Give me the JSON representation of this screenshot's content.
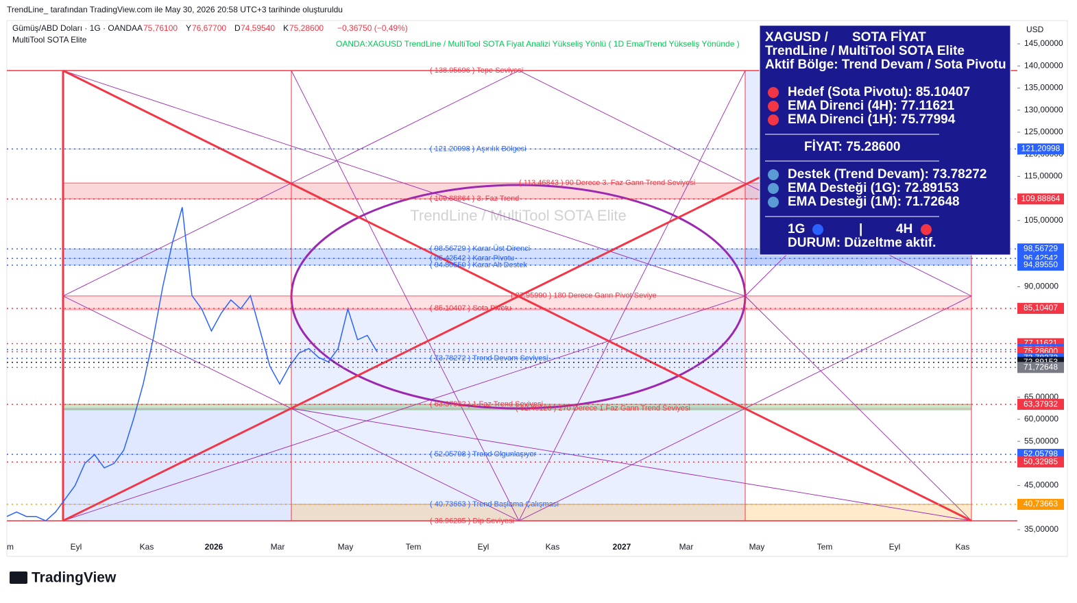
{
  "header": {
    "caption": "TrendLine_ tarafından TradingView.com ile May 30, 2026 20:58 UTC+3 tarihinde oluşturuldu",
    "symbol": "Gümüş/ABD Doları · 1G · OANDA",
    "ohlc": [
      [
        "A",
        "75,76100"
      ],
      [
        "Y",
        "76,67700"
      ],
      [
        "D",
        "74,59540"
      ],
      [
        "K",
        "75,28600"
      ]
    ],
    "change": "−0,36750 (−0,49%)",
    "indicator": "MultiTool SOTA Elite",
    "strategy_note": "OANDA:XAGUSD TrendLine / MultiTool  SOTA Fiyat Analizi Yükseliş Yönlü ( 1D  Ema/Trend Yükseliş Yönünde )",
    "currency": "USD"
  },
  "chart_data": {
    "type": "line",
    "watermark": "TrendLine / MultiTool SOTA Elite",
    "color": "#2962ff",
    "values": [
      38,
      39,
      38,
      38,
      37,
      39,
      42,
      45,
      50,
      52,
      49,
      50,
      53,
      60,
      68,
      78,
      90,
      100,
      108,
      88,
      85,
      80,
      84,
      87,
      85,
      88,
      80,
      72,
      68,
      72,
      75,
      76,
      74,
      73,
      76,
      85,
      78,
      79,
      75.286
    ],
    "time_labels": [
      "m",
      "Eyl",
      "Kas",
      "2026",
      "Mar",
      "May",
      "Tem",
      "Eyl",
      "Kas",
      "2027",
      "Mar",
      "May",
      "Tem",
      "Eyl",
      "Kas"
    ],
    "ylim": [
      33.14,
      149.19
    ],
    "yticks": [
      {
        "value": 145,
        "label": "145,00000"
      },
      {
        "value": 140,
        "label": "140,00000"
      },
      {
        "value": 135,
        "label": "135,00000"
      },
      {
        "value": 130,
        "label": "130,00000"
      },
      {
        "value": 125,
        "label": "125,00000"
      },
      {
        "value": 120,
        "label": "120,00000"
      },
      {
        "value": 115,
        "label": "115,00000"
      },
      {
        "value": 105,
        "label": "105,00000"
      },
      {
        "value": 90,
        "label": "90,00000"
      },
      {
        "value": 65,
        "label": "65,00000"
      },
      {
        "value": 60,
        "label": "60,00000"
      },
      {
        "value": 55,
        "label": "55,00000"
      },
      {
        "value": 45,
        "label": "45,00000"
      },
      {
        "value": 35,
        "label": "35,00000"
      }
    ],
    "price_labels": [
      {
        "value": 121.20998,
        "label": "121,20998",
        "color": "#2962ff"
      },
      {
        "value": 109.88864,
        "label": "109,88864",
        "color": "#f23645"
      },
      {
        "value": 98.56729,
        "label": "98,56729",
        "color": "#2962ff"
      },
      {
        "value": 96.42542,
        "label": "96,42542",
        "color": "#2962ff"
      },
      {
        "value": 94.8955,
        "label": "94,89550",
        "color": "#2962ff"
      },
      {
        "value": 85.10407,
        "label": "85,10407",
        "color": "#f23645"
      },
      {
        "value": 77.11621,
        "label": "77,11621",
        "color": "#f23645"
      },
      {
        "value": 75.77994,
        "label": "75,77994",
        "color": "#2962ff"
      },
      {
        "value": 75.286,
        "label": "75,28600",
        "color": "#f23645"
      },
      {
        "value": 73.78272,
        "label": "73,78272",
        "color": "#2962ff"
      },
      {
        "value": 72.89153,
        "label": "72,89153",
        "color": "#131722"
      },
      {
        "value": 71.72648,
        "label": "71,72648",
        "color": "#787b86"
      },
      {
        "value": 63.37932,
        "label": "63,37932",
        "color": "#f23645"
      },
      {
        "value": 52.05798,
        "label": "52,05798",
        "color": "#2962ff"
      },
      {
        "value": 50.32985,
        "label": "50,32985",
        "color": "#f23645"
      },
      {
        "value": 40.73663,
        "label": "40,73663",
        "color": "#ff9800"
      }
    ],
    "levels": [
      {
        "value": 138.95696,
        "label": "( 138.95696 ) Tepe Seviyesi",
        "color": "#f23645"
      },
      {
        "value": 121.20998,
        "label": "( 121.20998 ) Aşırılık Bölgesi",
        "color": "#2962ff"
      },
      {
        "value": 109.88864,
        "label": "( 109.88864 ) 3. Faz Trend",
        "color": "#f23645"
      },
      {
        "value": 113.46843,
        "label": "( 113.46843 ) 90 Derece 3. Faz Gann Trend Seviyesi",
        "color": "#f23645"
      },
      {
        "value": 98.56729,
        "label": "( 98.56729 ) Karar Üst Direnci",
        "color": "#2962ff"
      },
      {
        "value": 96.42542,
        "label": "( 96.42542 ) Karar Pivotu",
        "color": "#2962ff"
      },
      {
        "value": 94.8955,
        "label": "( 94.89550 ) Karar Alt Destek",
        "color": "#2962ff"
      },
      {
        "value": 85.10407,
        "label": "( 85.10407 ) Sota Pivotu",
        "color": "#f23645"
      },
      {
        "value": 87.9599,
        "label": "( 87.95990 ) 180 Derece Gann Pivot Seviye",
        "color": "#f23645"
      },
      {
        "value": 73.78272,
        "label": "( 73.78272 ) Trend Devam Seviyesi",
        "color": "#2962ff"
      },
      {
        "value": 63.37932,
        "label": "( 63.37932 ) 1.Faz Trend Seviyesi",
        "color": "#f23645"
      },
      {
        "value": 62.46128,
        "label": "( 62.46128 ) 270 Derece 1.Faz Gann Trend Seviyesi",
        "color": "#f23645"
      },
      {
        "value": 52.05798,
        "label": "( 52.05798 ) Trend Olgunlaşıyor",
        "color": "#2962ff"
      },
      {
        "value": 40.73663,
        "label": "( 40.73663 ) Trend Başlama Çalışması",
        "color": "#2962ff"
      },
      {
        "value": 36.96285,
        "label": "( 36.96285 ) Dip Seviyesi",
        "color": "#f23645"
      }
    ]
  },
  "info_box": {
    "lines": [
      "XAGUSD /",
      "SOTA FİYAT",
      "TrendLine / MultiTool SOTA Elite",
      "Aktif Bölge: Trend Devam / Sota Pivotu",
      "Hedef (Sota Pivotu): 85.10407",
      "EMA Direnci (4H): 77.11621",
      "EMA Direnci (1H): 75.77994",
      "FİYAT: 75.28600",
      "Destek (Trend Devam): 73.78272",
      "EMA Desteği (1G): 72.89153",
      "EMA Desteği (1M): 71.72648",
      "1G",
      "|",
      "4H",
      "DURUM: Düzeltme aktif."
    ]
  },
  "footer": {
    "logo": "TradingView"
  }
}
